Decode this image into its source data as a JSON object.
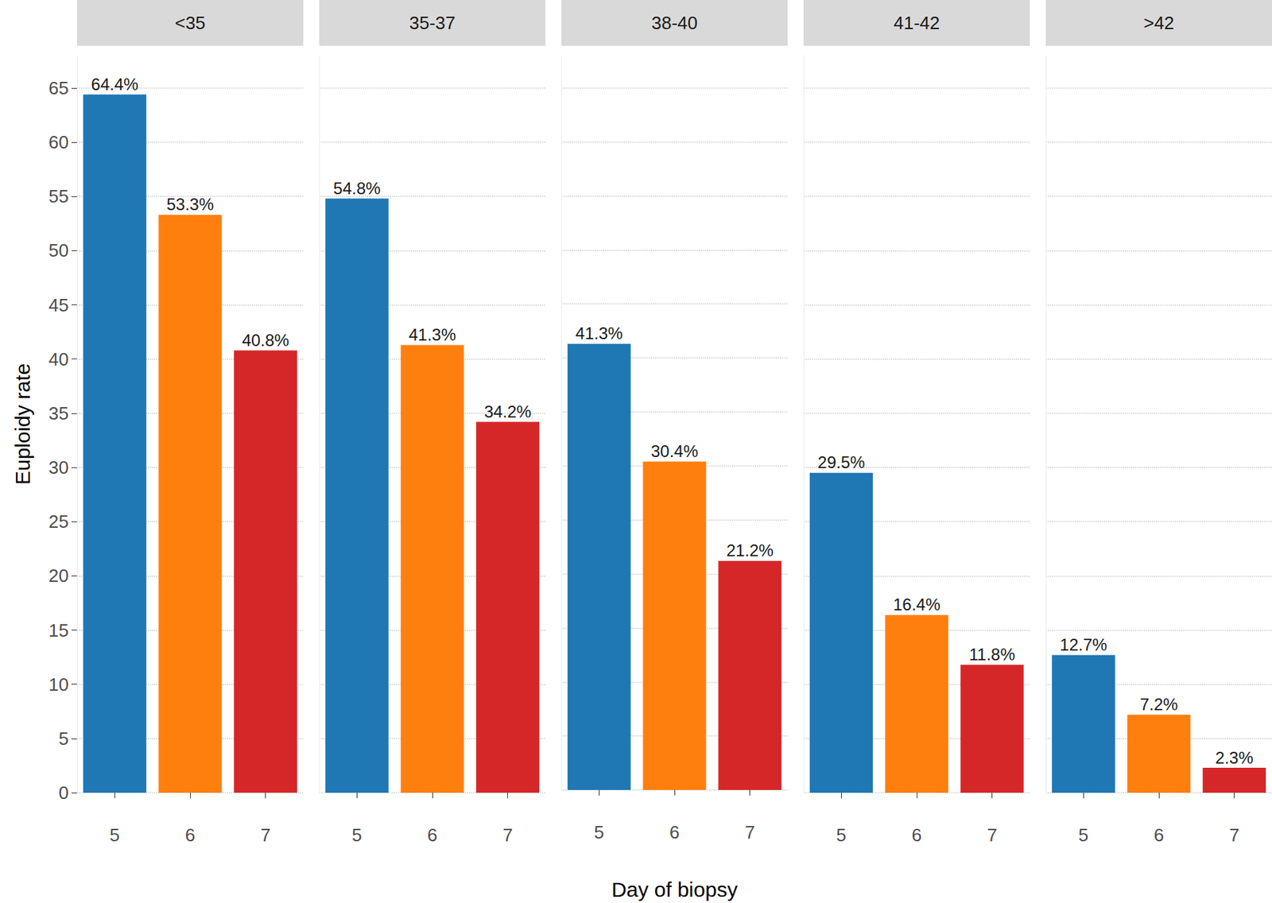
{
  "chart_data": [
    {
      "type": "bar",
      "title": "<35",
      "ylabel": "Euploidy rate",
      "categories": [
        "5",
        "6",
        "7"
      ],
      "values": [
        64.4,
        53.3,
        40.8
      ],
      "value_labels": [
        "64.4%",
        "53.3%",
        "40.8%"
      ],
      "colors": [
        "#1f77b4",
        "#ff7f0e",
        "#d62728"
      ],
      "ylim": [
        0,
        68
      ],
      "yticks": [
        0,
        5,
        10,
        15,
        20,
        25,
        30,
        35,
        40,
        45,
        50,
        55,
        60,
        65
      ],
      "grid": true,
      "data_labels": true
    },
    {
      "type": "bar",
      "title": "35-37",
      "categories": [
        "5",
        "6",
        "7"
      ],
      "values": [
        54.8,
        41.3,
        34.2
      ],
      "value_labels": [
        "54.8%",
        "41.3%",
        "34.2%"
      ],
      "colors": [
        "#1f77b4",
        "#ff7f0e",
        "#d62728"
      ],
      "ylim": [
        0,
        68
      ],
      "yticks": [
        0,
        5,
        10,
        15,
        20,
        25,
        30,
        35,
        40,
        45,
        50,
        55,
        60,
        65
      ],
      "grid": true,
      "data_labels": true,
      "tick_labels": "x"
    },
    {
      "type": "bar",
      "title": "38-40",
      "xlabel": "Day of biopsy",
      "categories": [
        "5",
        "6",
        "7"
      ],
      "values": [
        41.3,
        30.4,
        21.2
      ],
      "value_labels": [
        "41.3%",
        "30.4%",
        "21.2%"
      ],
      "colors": [
        "#1f77b4",
        "#ff7f0e",
        "#d62728"
      ],
      "ylim": [
        0,
        68
      ],
      "yticks": [
        0,
        5,
        10,
        15,
        20,
        25,
        30,
        35,
        40,
        45,
        50,
        55,
        60,
        65
      ],
      "grid": true,
      "data_labels": true,
      "tick_labels": "x"
    },
    {
      "type": "bar",
      "title": "41-42",
      "categories": [
        "5",
        "6",
        "7"
      ],
      "values": [
        29.5,
        16.4,
        11.8
      ],
      "value_labels": [
        "29.5%",
        "16.4%",
        "11.8%"
      ],
      "colors": [
        "#1f77b4",
        "#ff7f0e",
        "#d62728"
      ],
      "ylim": [
        0,
        68
      ],
      "yticks": [
        0,
        5,
        10,
        15,
        20,
        25,
        30,
        35,
        40,
        45,
        50,
        55,
        60,
        65
      ],
      "grid": true,
      "data_labels": true,
      "tick_labels": "x"
    },
    {
      "type": "bar",
      "title": ">42",
      "categories": [
        "5",
        "6",
        "7"
      ],
      "values": [
        12.7,
        7.2,
        2.3
      ],
      "value_labels": [
        "12.7%",
        "7.2%",
        "2.3%"
      ],
      "colors": [
        "#1f77b4",
        "#ff7f0e",
        "#d62728"
      ],
      "ylim": [
        0,
        68
      ],
      "yticks": [
        0,
        5,
        10,
        15,
        20,
        25,
        30,
        35,
        40,
        45,
        50,
        55,
        60,
        65
      ],
      "grid": true,
      "data_labels": true,
      "tick_labels": "x"
    }
  ]
}
